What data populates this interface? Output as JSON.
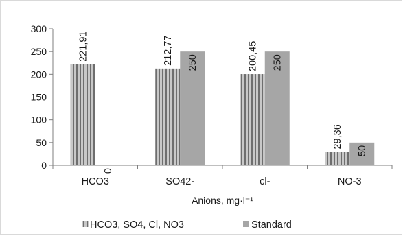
{
  "chart_data": {
    "type": "bar",
    "title": "",
    "xlabel": "Anions, mg·l⁻¹",
    "ylabel": "",
    "ylim": [
      0,
      300
    ],
    "yticks": [
      0,
      50,
      100,
      150,
      200,
      250,
      300
    ],
    "grid": false,
    "legend_position": "bottom",
    "categories": [
      "HCO3",
      "SO42-",
      "cl-",
      "NO-3"
    ],
    "series": [
      {
        "name": "HCO3, SO4, Cl, NO3",
        "values": [
          221.91,
          212.77,
          200.45,
          29.36
        ],
        "labels": [
          "221,91",
          "212,77",
          "200,45",
          "29,36"
        ],
        "color": "#a6a6a6",
        "pattern": "vertical-stripes"
      },
      {
        "name": "Standard",
        "values": [
          0,
          250,
          250,
          50
        ],
        "labels": [
          "0",
          "250",
          "250",
          "50"
        ],
        "color": "#a6a6a6",
        "pattern": "solid"
      }
    ]
  }
}
